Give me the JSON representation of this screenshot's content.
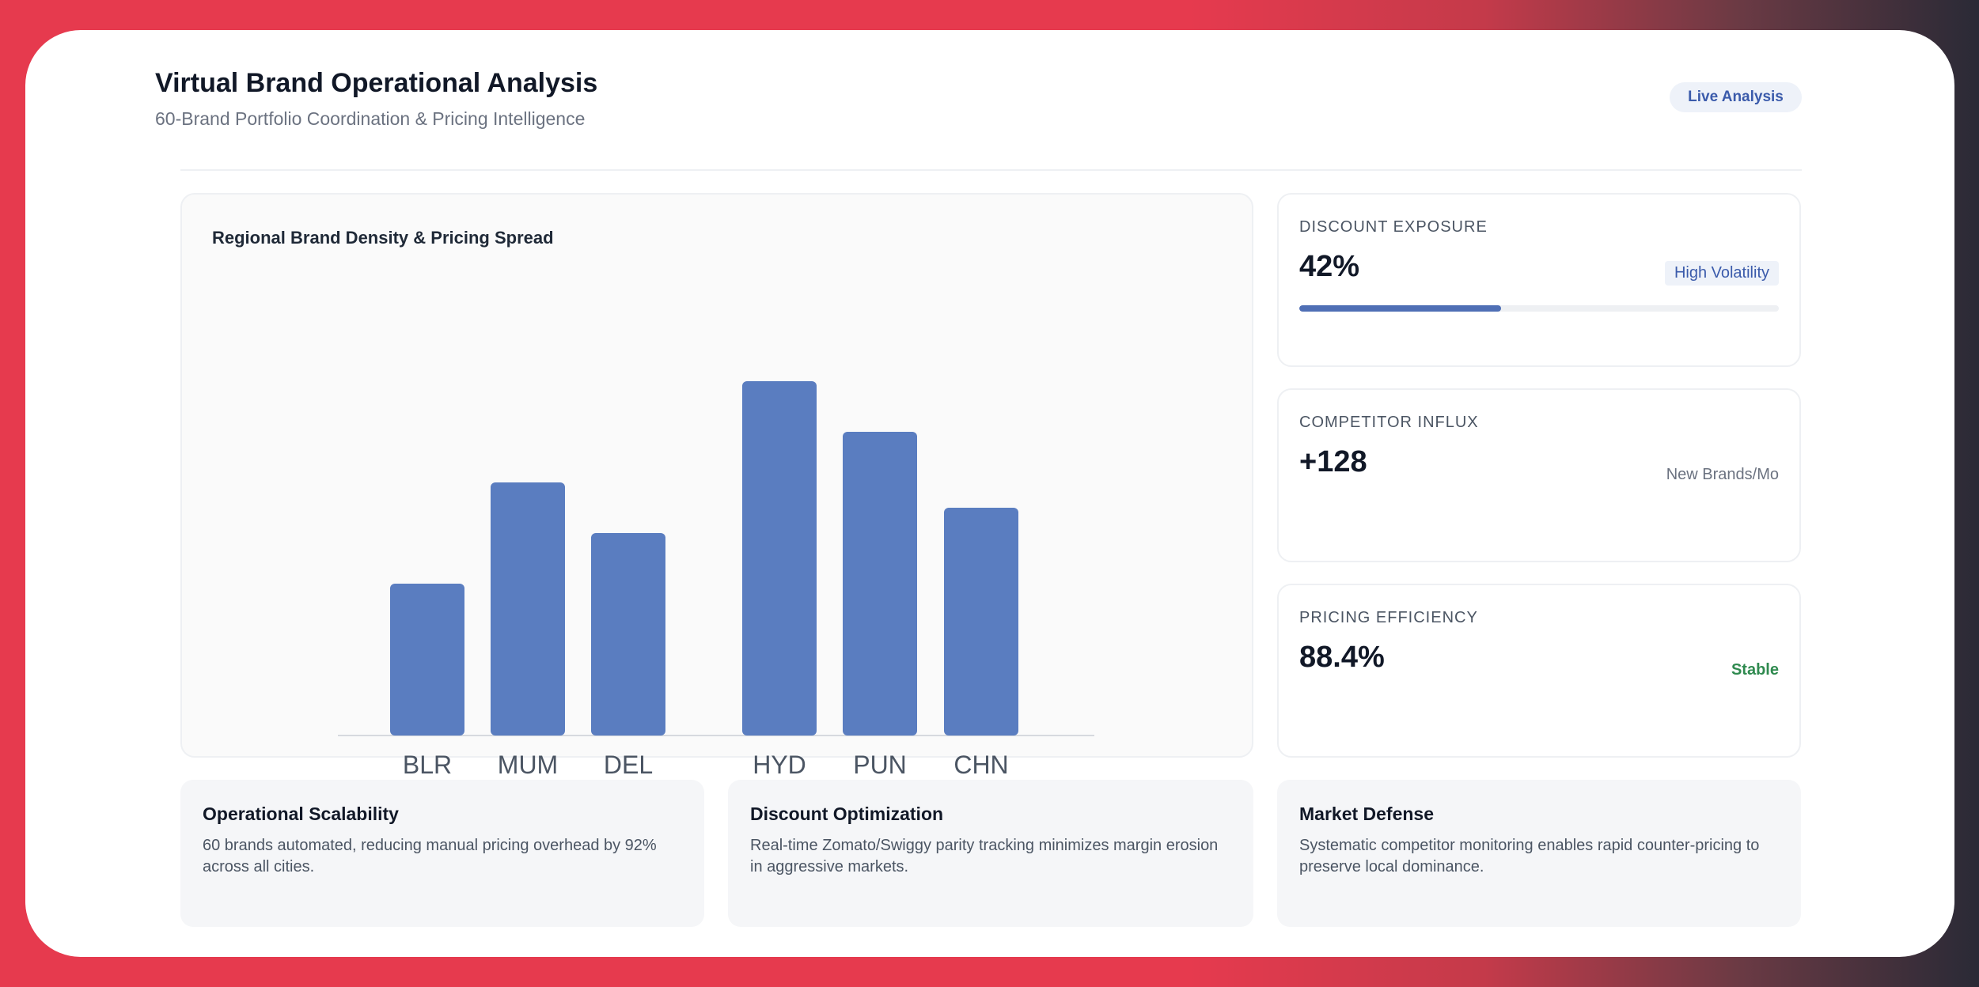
{
  "header": {
    "title": "Virtual Brand Operational Analysis",
    "subtitle": "60-Brand Portfolio Coordination & Pricing Intelligence",
    "badge": "Live Analysis"
  },
  "chart_data": {
    "type": "bar",
    "title": "Regional Brand Density & Pricing Spread",
    "categories": [
      "BLR",
      "MUM",
      "DEL",
      "HYD",
      "PUN",
      "CHN"
    ],
    "values": [
      30,
      50,
      40,
      70,
      60,
      45
    ],
    "ylim": [
      0,
      100
    ],
    "xlabel": "",
    "ylabel": "",
    "grid": false,
    "color": "#5a7dc0"
  },
  "metrics": [
    {
      "label": "DISCOUNT EXPOSURE",
      "value": "42%",
      "tag": "High Volatility",
      "progress": 0.42
    },
    {
      "label": "COMPETITOR INFLUX",
      "value": "+128",
      "tag": "New Brands/Mo"
    },
    {
      "label": "PRICING EFFICIENCY",
      "value": "88.4%",
      "tag": "Stable"
    }
  ],
  "info_cards": [
    {
      "title": "Operational Scalability",
      "text": "60 brands automated, reducing manual pricing overhead by 92% across all cities."
    },
    {
      "title": "Discount Optimization",
      "text": "Real-time Zomato/Swiggy parity tracking minimizes margin erosion in aggressive markets."
    },
    {
      "title": "Market Defense",
      "text": "Systematic competitor monitoring enables rapid counter-pricing to preserve local dominance."
    }
  ],
  "colors": {
    "accent": "#4f6fb5",
    "bar": "#5a7dc0",
    "stable": "#2f8a4f",
    "frame": "#e63a4e"
  }
}
